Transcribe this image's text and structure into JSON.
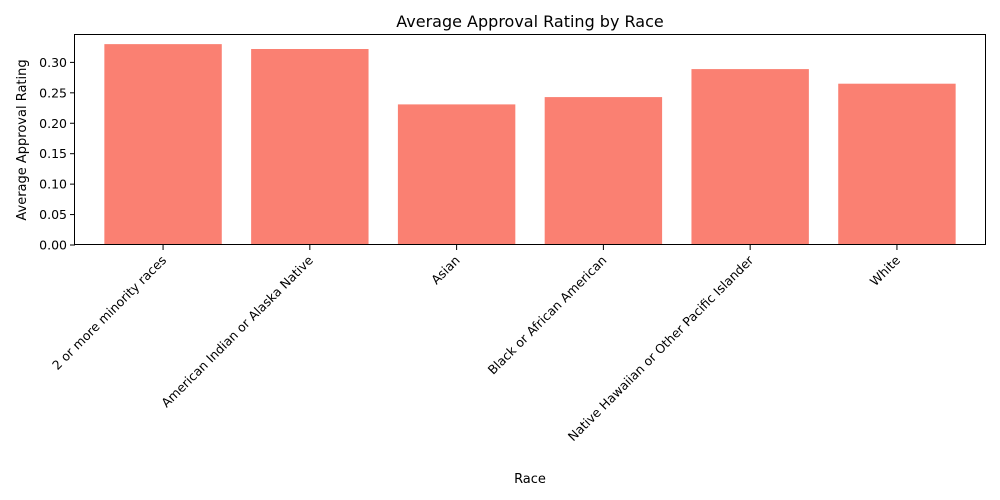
{
  "chart_data": {
    "type": "bar",
    "title": "Average Approval Rating by Race",
    "xlabel": "Race",
    "ylabel": "Average Approval Rating",
    "categories": [
      "2 or more minority races",
      "American Indian or Alaska Native",
      "Asian",
      "Black or African American",
      "Native Hawaiian or Other Pacific Islander",
      "White"
    ],
    "values": [
      0.33,
      0.322,
      0.231,
      0.243,
      0.289,
      0.265
    ],
    "ylim": [
      0,
      0.345
    ],
    "yticks": [
      0.0,
      0.05,
      0.1,
      0.15,
      0.2,
      0.25,
      0.3
    ],
    "ytick_labels": [
      "0.00",
      "0.05",
      "0.10",
      "0.15",
      "0.20",
      "0.25",
      "0.30"
    ],
    "bar_color": "#fa8072",
    "grid": false
  }
}
